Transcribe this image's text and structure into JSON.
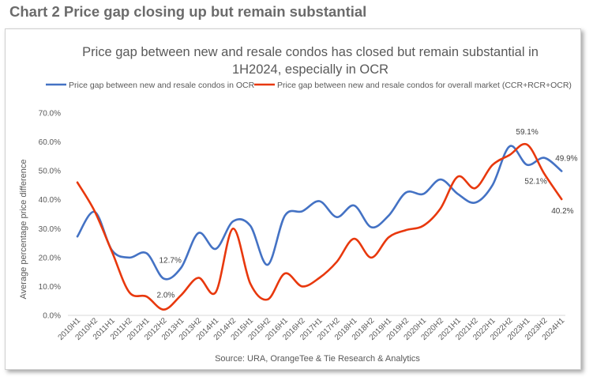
{
  "page_heading": "Chart 2 Price gap closing up but remain substantial",
  "chart_data": {
    "type": "line",
    "title_line1": "Price gap between new and resale condos has closed but remain substantial in",
    "title_line2": "1H2024, especially in OCR",
    "xlabel": "",
    "ylabel": "Average percentage price difference",
    "ylim": [
      0,
      70
    ],
    "ytick_labels": [
      "0.0%",
      "10.0%",
      "20.0%",
      "30.0%",
      "40.0%",
      "50.0%",
      "60.0%",
      "70.0%"
    ],
    "categories": [
      "2010H1",
      "2010H2",
      "2011H1",
      "2011H2",
      "2012H1",
      "2012H2",
      "2013H1",
      "2013H2",
      "2014H1",
      "2014H2",
      "2015H1",
      "2015H2",
      "2016H1",
      "2016H2",
      "2017H1",
      "2017H2",
      "2018H1",
      "2018H2",
      "2019H1",
      "2019H2",
      "2020H1",
      "2020H2",
      "2021H1",
      "2021H2",
      "2022H1",
      "2022H2",
      "2023H1",
      "2023H2",
      "2024H1"
    ],
    "legend_position": "top",
    "gridlines": false,
    "series": [
      {
        "name": "Price gap between new and resale condos in OCR",
        "color": "#4472C4",
        "values": [
          27.3,
          35.8,
          22.5,
          20.0,
          21.5,
          12.7,
          16.5,
          28.5,
          23.0,
          32.5,
          31.0,
          17.5,
          34.5,
          36.0,
          39.5,
          34.0,
          38.0,
          30.5,
          34.5,
          42.5,
          42.0,
          47.0,
          42.0,
          39.0,
          45.0,
          58.5,
          52.1,
          54.5,
          49.9
        ]
      },
      {
        "name": "Price gap between new and resale condos for overall market (CCR+RCR+OCR)",
        "color": "#E8380D",
        "values": [
          46.0,
          36.0,
          22.0,
          8.0,
          6.5,
          2.0,
          7.0,
          13.0,
          8.0,
          30.0,
          11.0,
          5.5,
          14.5,
          10.0,
          13.0,
          18.5,
          26.5,
          20.0,
          27.0,
          29.5,
          31.0,
          37.0,
          48.0,
          44.0,
          52.0,
          55.5,
          59.1,
          49.0,
          40.2
        ]
      }
    ],
    "annotations": [
      {
        "text": "12.7%",
        "series": 0,
        "index": 5
      },
      {
        "text": "2.0%",
        "series": 1,
        "index": 5
      },
      {
        "text": "59.1%",
        "series": 1,
        "index": 26
      },
      {
        "text": "52.1%",
        "series": 0,
        "index": 26
      },
      {
        "text": "49.9%",
        "series": 0,
        "index": 28
      },
      {
        "text": "40.2%",
        "series": 1,
        "index": 28
      }
    ],
    "source": "Source: URA, OrangeTee & Tie Research & Analytics"
  }
}
